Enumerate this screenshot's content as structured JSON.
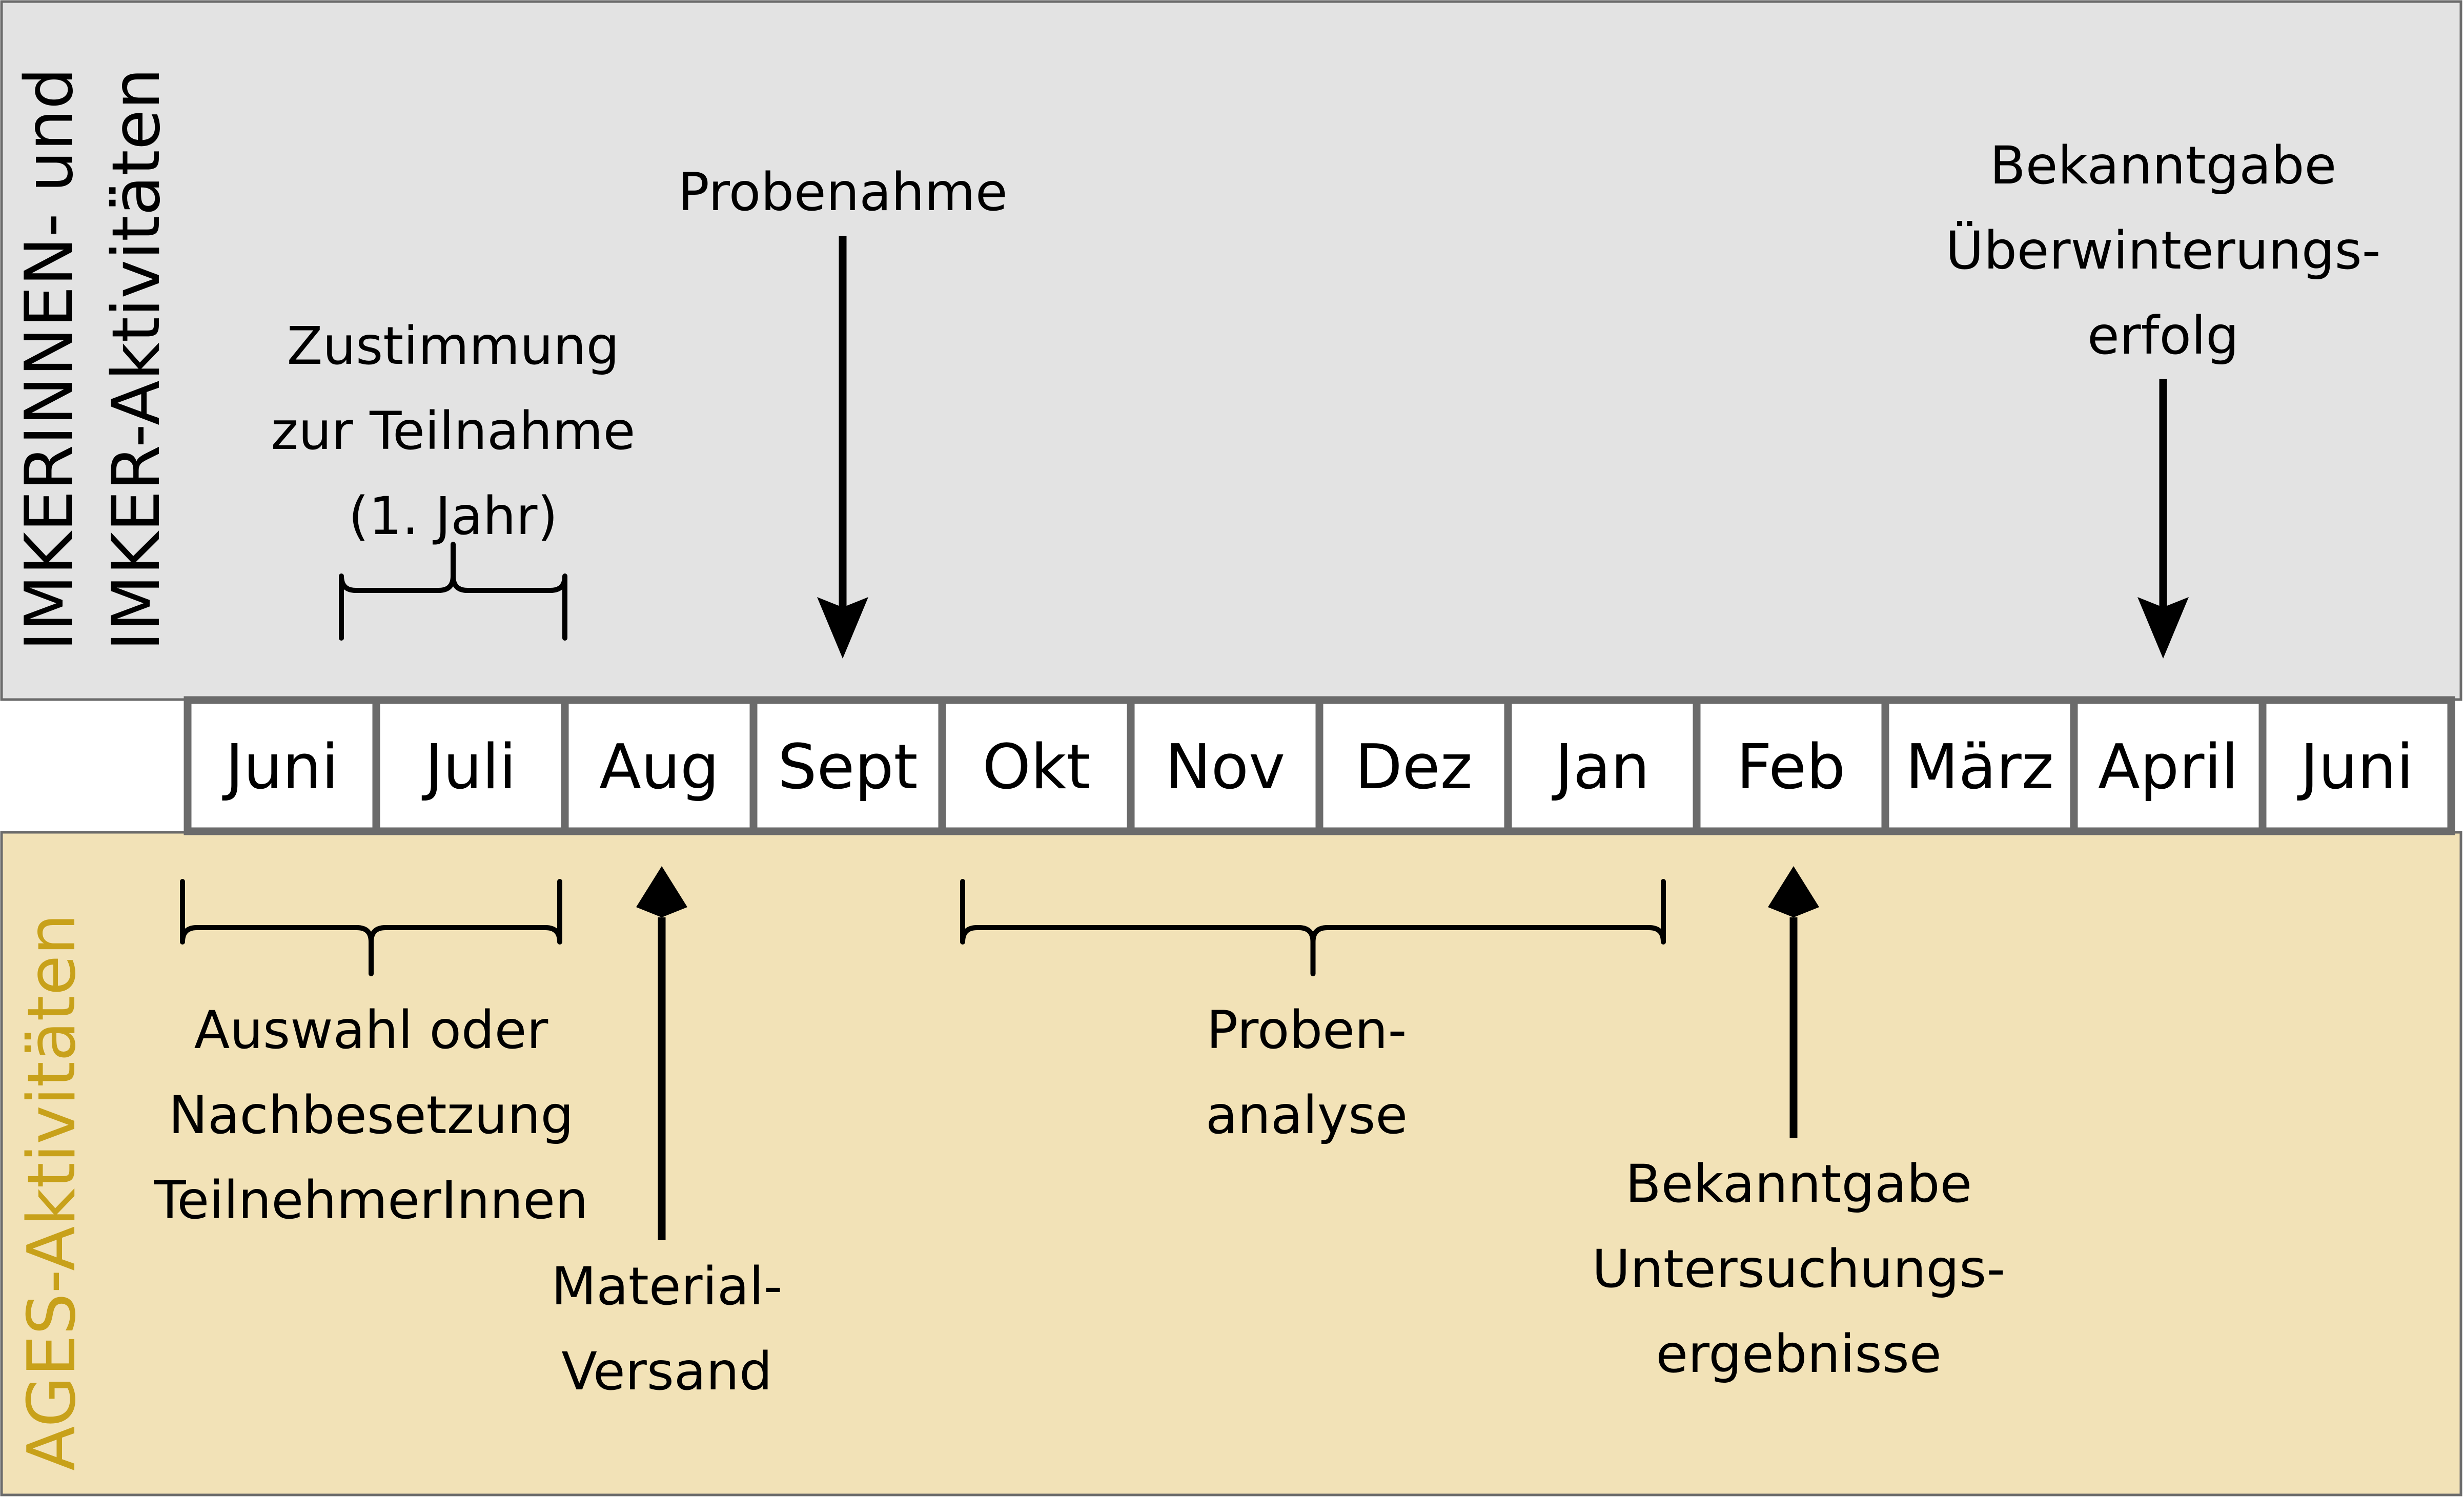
{
  "bands": {
    "top": {
      "label_lines": [
        "IMKERINNEN- und",
        "IMKER-Aktivitäten"
      ],
      "color": "#e3e3e3",
      "label_color": "#000000"
    },
    "bottom": {
      "label_lines": [
        "AGES-Aktivitäten"
      ],
      "color": "#f2e2b7",
      "label_color": "#c8a11a"
    }
  },
  "timeline": {
    "months": [
      "Juni",
      "Juli",
      "Aug",
      "Sept",
      "Okt",
      "Nov",
      "Dez",
      "Jan",
      "Feb",
      "März",
      "April",
      "Juni"
    ],
    "cell_fill": "#ffffff",
    "cell_border": "#6b6b6b"
  },
  "top_events": [
    {
      "type": "brace",
      "lines": [
        "Zustimmung",
        "zur Teilnahme",
        "(1. Jahr)"
      ],
      "start_month": "Juni",
      "end_month": "Juli"
    },
    {
      "type": "arrow",
      "lines": [
        "Probenahme"
      ],
      "month": "Sept"
    },
    {
      "type": "arrow",
      "lines": [
        "Bekanntgabe",
        "Überwinterungs-",
        "erfolg"
      ],
      "month": "April"
    }
  ],
  "bottom_events": [
    {
      "type": "brace",
      "lines": [
        "Auswahl oder",
        "Nachbesetzung",
        "TeilnehmerInnen"
      ],
      "start_month": "Juni",
      "end_month": "Juli"
    },
    {
      "type": "arrow",
      "lines": [
        "Material-",
        "Versand"
      ],
      "month": "Aug"
    },
    {
      "type": "brace",
      "lines": [
        "Proben-",
        "analyse"
      ],
      "start_month": "Okt",
      "end_month": "Jan"
    },
    {
      "type": "arrow",
      "lines": [
        "Bekanntgabe",
        "Untersuchungs-",
        "ergebnisse"
      ],
      "month": "Feb"
    }
  ]
}
